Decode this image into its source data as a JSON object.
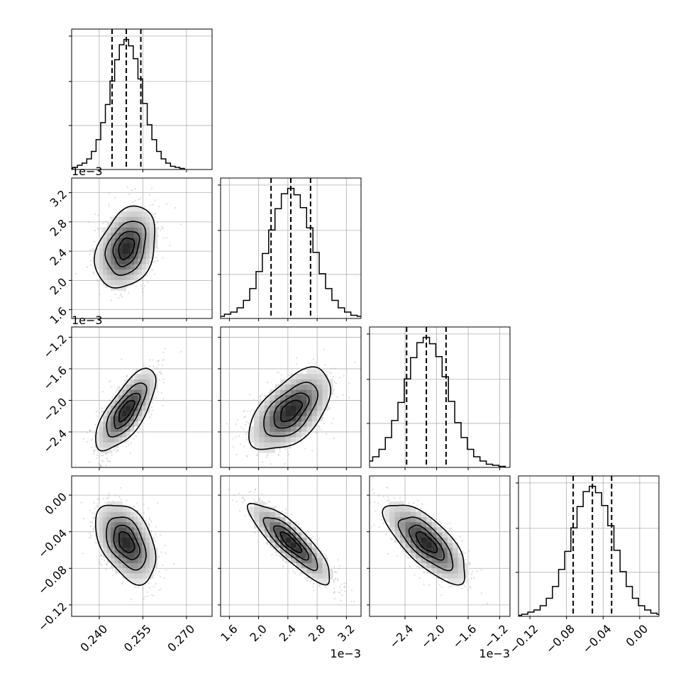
{
  "chart_data": {
    "type": "corner",
    "parameters": [
      {
        "id": "p0",
        "mean": 0.2493,
        "sd": 0.005,
        "range": [
          0.2305,
          0.2788
        ],
        "ticks": [
          0.24,
          0.255,
          0.27
        ],
        "tick_labels": [
          "0.240",
          "0.255",
          "0.270"
        ],
        "offset_text": "",
        "quantiles": [
          0.2444,
          0.2493,
          0.2543
        ],
        "hist": [
          1,
          2,
          4,
          6,
          10,
          17,
          28,
          44,
          61,
          83,
          103,
          117,
          122,
          116,
          104,
          85,
          62,
          42,
          28,
          17,
          10,
          6,
          3,
          2,
          1
        ]
      },
      {
        "id": "p1",
        "mean": 0.00244,
        "sd": 0.00027,
        "range": [
          0.00148,
          0.0034
        ],
        "ticks": [
          0.0016,
          0.002,
          0.0024,
          0.0028,
          0.0032
        ],
        "tick_labels": [
          "1.6",
          "2.0",
          "2.4",
          "2.8",
          "3.2"
        ],
        "offset_text": "1e−3",
        "quantiles": [
          0.00217,
          0.00244,
          0.00271
        ],
        "hist": [
          1,
          2,
          4,
          6,
          10,
          17,
          28,
          44,
          61,
          83,
          103,
          117,
          122,
          116,
          104,
          85,
          62,
          42,
          28,
          17,
          10,
          6,
          3,
          2,
          1
        ]
      },
      {
        "id": "p2",
        "mean": -0.00213,
        "sd": 0.00025,
        "range": [
          -0.00285,
          -0.00107
        ],
        "ticks": [
          -0.0024,
          -0.002,
          -0.0016,
          -0.0012
        ],
        "tick_labels": [
          "−2.4",
          "−2.0",
          "−1.6",
          "−1.2"
        ],
        "offset_text": "1e−3",
        "quantiles": [
          -0.00238,
          -0.00213,
          -0.00188
        ],
        "hist": [
          1,
          2,
          4,
          6,
          10,
          17,
          28,
          44,
          61,
          83,
          103,
          117,
          122,
          116,
          104,
          85,
          62,
          42,
          28,
          17,
          10,
          6,
          3,
          2,
          1
        ]
      },
      {
        "id": "p3",
        "mean": -0.0517,
        "sd": 0.021,
        "range": [
          -0.1325,
          0.021
        ],
        "ticks": [
          -0.12,
          -0.08,
          -0.04,
          0.0
        ],
        "tick_labels": [
          "−0.12",
          "−0.08",
          "−0.04",
          "0.00"
        ],
        "offset_text": "",
        "quantiles": [
          -0.0727,
          -0.0517,
          -0.0307
        ],
        "hist": [
          1,
          2,
          4,
          6,
          10,
          17,
          28,
          44,
          61,
          83,
          103,
          117,
          122,
          116,
          104,
          85,
          62,
          42,
          28,
          17,
          10,
          6,
          3,
          2,
          1
        ]
      }
    ],
    "correlations": {
      "1,0": 0.3,
      "2,0": 0.72,
      "2,1": 0.55,
      "3,0": -0.42,
      "3,1": -0.85,
      "3,2": -0.72
    },
    "contour_levels_sigma": [
      0.5,
      1.0,
      1.5,
      2.0
    ],
    "grid": true,
    "colors": {
      "ink": "#000000",
      "points": "#9a9a9a",
      "grid": "#b0b0b0"
    }
  }
}
